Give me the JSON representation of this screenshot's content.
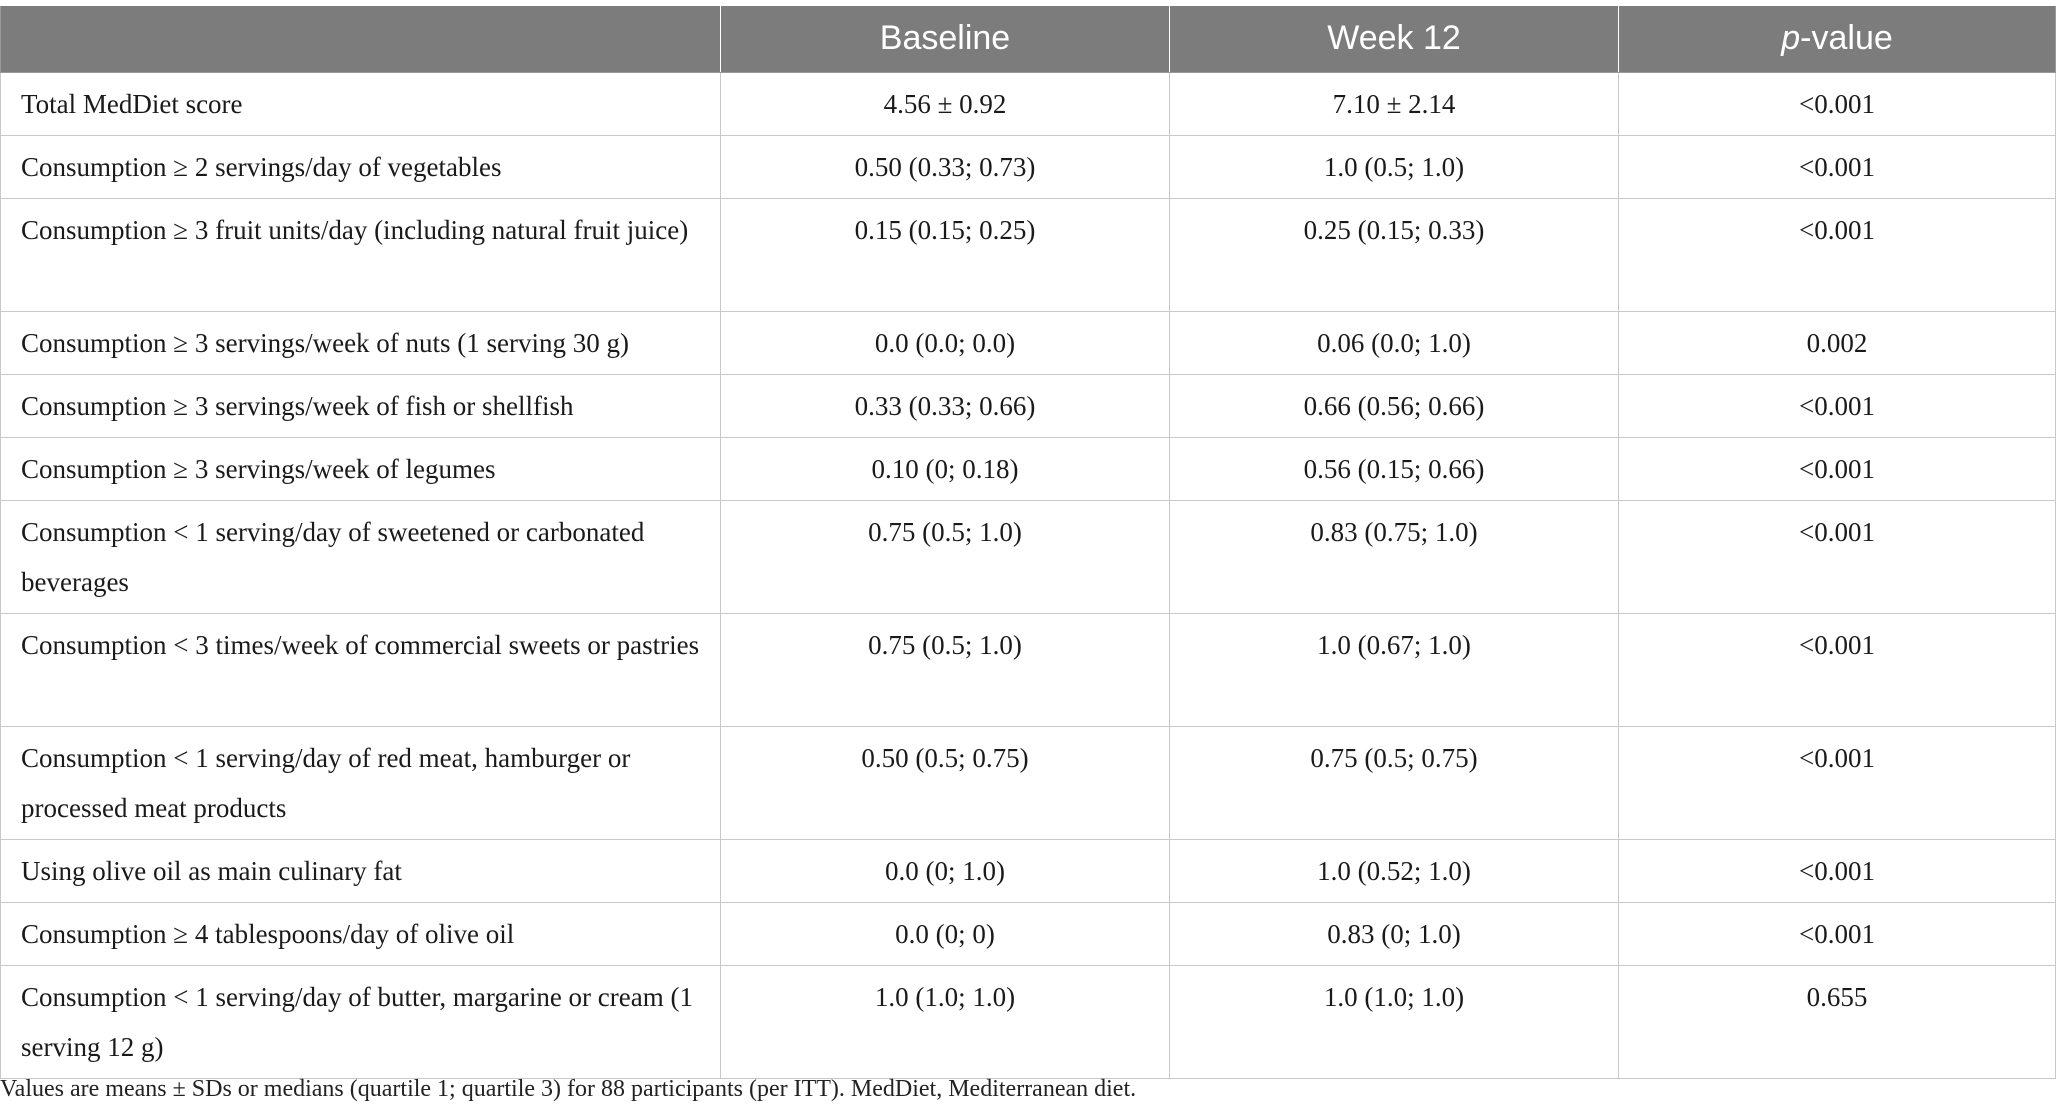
{
  "table": {
    "headers": [
      "",
      "Baseline",
      "Week 12",
      "value"
    ],
    "pvalue_prefix": "p",
    "pvalue_sep": "-",
    "rows": [
      {
        "label": "Total MedDiet score",
        "baseline": "4.56 ± 0.92",
        "week12": "7.10 ± 2.14",
        "p": "<0.001",
        "lines": 1
      },
      {
        "label": "Consumption ≥ 2 servings/day of vegetables",
        "baseline": "0.50 (0.33; 0.73)",
        "week12": "1.0 (0.5; 1.0)",
        "p": "<0.001",
        "lines": 1
      },
      {
        "label": "Consumption ≥ 3 fruit units/day (including natural fruit juice)",
        "baseline": "0.15 (0.15; 0.25)",
        "week12": "0.25 (0.15; 0.33)",
        "p": "<0.001",
        "lines": 2
      },
      {
        "label": "Consumption ≥ 3 servings/week of nuts (1 serving 30 g)",
        "baseline": "0.0 (0.0; 0.0)",
        "week12": "0.06 (0.0; 1.0)",
        "p": "0.002",
        "lines": 1
      },
      {
        "label": "Consumption ≥ 3 servings/week of fish or shellfish",
        "baseline": "0.33 (0.33; 0.66)",
        "week12": "0.66 (0.56; 0.66)",
        "p": "<0.001",
        "lines": 1
      },
      {
        "label": "Consumption ≥ 3 servings/week of legumes",
        "baseline": "0.10 (0; 0.18)",
        "week12": "0.56 (0.15; 0.66)",
        "p": "<0.001",
        "lines": 1
      },
      {
        "label": "Consumption < 1 serving/day of sweetened or carbonated beverages",
        "baseline": "0.75 (0.5; 1.0)",
        "week12": "0.83 (0.75; 1.0)",
        "p": "<0.001",
        "lines": 2
      },
      {
        "label": "Consumption < 3 times/week of commercial sweets or pastries",
        "baseline": "0.75 (0.5; 1.0)",
        "week12": "1.0 (0.67; 1.0)",
        "p": "<0.001",
        "lines": 2
      },
      {
        "label": "Consumption < 1 serving/day of red meat, hamburger or processed meat products",
        "baseline": "0.50 (0.5; 0.75)",
        "week12": "0.75 (0.5; 0.75)",
        "p": "<0.001",
        "lines": 2
      },
      {
        "label": "Using olive oil as main culinary fat",
        "baseline": "0.0 (0; 1.0)",
        "week12": "1.0 (0.52; 1.0)",
        "p": "<0.001",
        "lines": 1
      },
      {
        "label": "Consumption ≥ 4 tablespoons/day of olive oil",
        "baseline": "0.0 (0; 0)",
        "week12": "0.83 (0; 1.0)",
        "p": "<0.001",
        "lines": 1
      },
      {
        "label": "Consumption < 1 serving/day of butter, margarine or cream (1 serving 12 g)",
        "baseline": "1.0 (1.0; 1.0)",
        "week12": "1.0 (1.0; 1.0)",
        "p": "0.655",
        "lines": 2
      }
    ]
  },
  "footnote": "Values are means ± SDs or medians (quartile 1; quartile 3) for 88 participants (per ITT). MedDiet, Mediterranean diet."
}
